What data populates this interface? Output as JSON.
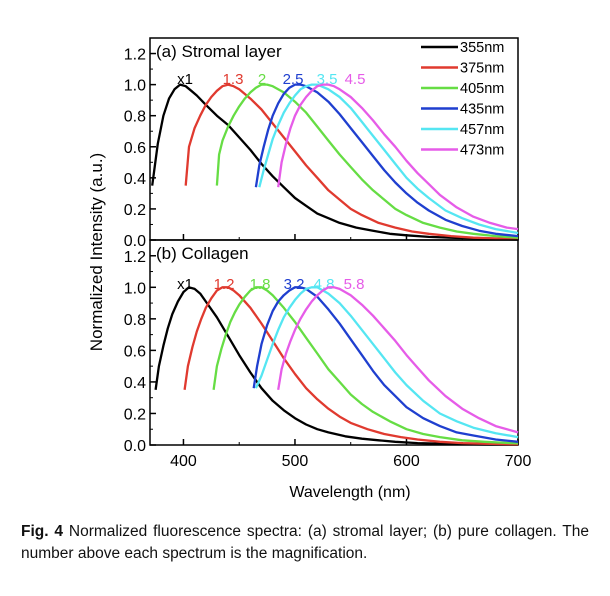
{
  "figure": {
    "ylabel": "Normalized Intensity (a.u.)",
    "xlabel": "Wavelength (nm)",
    "x_ticks": [
      "400",
      "500",
      "600",
      "700"
    ],
    "y_ticks": [
      "0.0",
      "0.2",
      "0.4",
      "0.6",
      "0.8",
      "1.0",
      "1.2"
    ],
    "legend": [
      {
        "label": "355nm",
        "color": "#000000"
      },
      {
        "label": "375nm",
        "color": "#e03a2f"
      },
      {
        "label": "405nm",
        "color": "#66dd44"
      },
      {
        "label": "435nm",
        "color": "#1f3fcf"
      },
      {
        "label": "457nm",
        "color": "#55e6f2"
      },
      {
        "label": "473nm",
        "color": "#e65ce8"
      }
    ]
  },
  "caption": {
    "label": "Fig. 4",
    "text": "Normalized fluorescence spectra: (a) stromal layer; (b) pure collagen. The number above each spectrum is the magnification."
  },
  "chart_data": [
    {
      "type": "line",
      "title": "(a) Stromal layer",
      "xlabel": "Wavelength (nm)",
      "ylabel": "Normalized Intensity (a.u.)",
      "xlim": [
        370,
        700
      ],
      "ylim": [
        0,
        1.3
      ],
      "legend_position": "top-right",
      "series": [
        {
          "name": "355nm",
          "color": "#000000",
          "magnification": "x1",
          "x": [
            372,
            377,
            382,
            387,
            392,
            397,
            402,
            407,
            412,
            420,
            430,
            440,
            450,
            460,
            470,
            480,
            490,
            500,
            510,
            520,
            530,
            540,
            555,
            570,
            585,
            600,
            620,
            640,
            660,
            680,
            700
          ],
          "y": [
            0.35,
            0.62,
            0.8,
            0.91,
            0.97,
            1.0,
            0.99,
            0.96,
            0.93,
            0.87,
            0.8,
            0.74,
            0.66,
            0.58,
            0.49,
            0.41,
            0.34,
            0.27,
            0.22,
            0.17,
            0.14,
            0.11,
            0.08,
            0.06,
            0.04,
            0.03,
            0.02,
            0.015,
            0.01,
            0.005,
            0.003
          ]
        },
        {
          "name": "375nm",
          "color": "#e03a2f",
          "magnification": "1.3",
          "x": [
            402,
            405,
            410,
            415,
            420,
            425,
            430,
            435,
            440,
            445,
            450,
            460,
            470,
            480,
            490,
            500,
            510,
            520,
            530,
            540,
            550,
            560,
            575,
            590,
            605,
            620,
            640,
            660,
            680,
            700
          ],
          "y": [
            0.35,
            0.6,
            0.72,
            0.8,
            0.87,
            0.92,
            0.96,
            0.99,
            1.0,
            0.99,
            0.97,
            0.91,
            0.84,
            0.75,
            0.66,
            0.57,
            0.48,
            0.4,
            0.32,
            0.26,
            0.2,
            0.16,
            0.11,
            0.08,
            0.055,
            0.04,
            0.025,
            0.015,
            0.01,
            0.005
          ]
        },
        {
          "name": "405nm",
          "color": "#66dd44",
          "magnification": "2",
          "x": [
            430,
            432,
            435,
            440,
            445,
            450,
            455,
            460,
            465,
            470,
            475,
            480,
            490,
            500,
            510,
            520,
            530,
            540,
            550,
            560,
            570,
            580,
            590,
            600,
            615,
            630,
            645,
            660,
            680,
            700
          ],
          "y": [
            0.35,
            0.55,
            0.64,
            0.73,
            0.8,
            0.86,
            0.91,
            0.95,
            0.98,
            1.0,
            1.0,
            0.99,
            0.95,
            0.89,
            0.82,
            0.73,
            0.64,
            0.55,
            0.47,
            0.39,
            0.32,
            0.26,
            0.2,
            0.16,
            0.11,
            0.08,
            0.055,
            0.04,
            0.025,
            0.015
          ]
        },
        {
          "name": "435nm",
          "color": "#1f3fcf",
          "magnification": "2.5",
          "x": [
            465,
            468,
            472,
            476,
            480,
            485,
            490,
            495,
            500,
            505,
            510,
            520,
            530,
            540,
            550,
            560,
            570,
            580,
            590,
            600,
            610,
            620,
            635,
            650,
            665,
            680,
            700
          ],
          "y": [
            0.34,
            0.48,
            0.6,
            0.71,
            0.8,
            0.88,
            0.94,
            0.98,
            1.0,
            1.0,
            0.99,
            0.95,
            0.89,
            0.81,
            0.72,
            0.63,
            0.54,
            0.45,
            0.37,
            0.3,
            0.24,
            0.19,
            0.13,
            0.09,
            0.06,
            0.04,
            0.025
          ]
        },
        {
          "name": "457nm",
          "color": "#55e6f2",
          "magnification": "3.5",
          "x": [
            468,
            472,
            476,
            480,
            485,
            490,
            495,
            500,
            505,
            510,
            515,
            520,
            530,
            540,
            550,
            560,
            570,
            580,
            590,
            600,
            610,
            620,
            635,
            650,
            665,
            680,
            700
          ],
          "y": [
            0.34,
            0.45,
            0.55,
            0.65,
            0.74,
            0.82,
            0.88,
            0.93,
            0.97,
            0.99,
            1.0,
            1.0,
            0.97,
            0.92,
            0.85,
            0.76,
            0.67,
            0.58,
            0.49,
            0.4,
            0.33,
            0.27,
            0.19,
            0.14,
            0.1,
            0.07,
            0.045
          ]
        },
        {
          "name": "473nm",
          "color": "#e65ce8",
          "magnification": "4.5",
          "x": [
            485,
            488,
            492,
            496,
            500,
            505,
            510,
            515,
            520,
            525,
            530,
            535,
            540,
            550,
            560,
            570,
            580,
            590,
            600,
            610,
            620,
            630,
            645,
            660,
            675,
            690,
            700
          ],
          "y": [
            0.34,
            0.5,
            0.62,
            0.72,
            0.8,
            0.87,
            0.92,
            0.96,
            0.99,
            1.0,
            1.0,
            0.99,
            0.97,
            0.92,
            0.85,
            0.77,
            0.68,
            0.6,
            0.51,
            0.43,
            0.36,
            0.29,
            0.21,
            0.15,
            0.11,
            0.08,
            0.07
          ]
        }
      ]
    },
    {
      "type": "line",
      "title": "(b) Collagen",
      "xlabel": "Wavelength (nm)",
      "ylabel": "Normalized Intensity (a.u.)",
      "xlim": [
        370,
        700
      ],
      "ylim": [
        0,
        1.3
      ],
      "series": [
        {
          "name": "355nm",
          "color": "#000000",
          "magnification": "x1",
          "x": [
            375,
            378,
            382,
            386,
            390,
            395,
            400,
            405,
            410,
            415,
            420,
            430,
            440,
            450,
            460,
            470,
            480,
            490,
            500,
            510,
            520,
            530,
            545,
            560,
            575,
            590,
            610,
            630,
            650,
            670,
            700
          ],
          "y": [
            0.35,
            0.5,
            0.63,
            0.74,
            0.83,
            0.91,
            0.97,
            1.0,
            0.99,
            0.96,
            0.91,
            0.81,
            0.69,
            0.57,
            0.46,
            0.36,
            0.28,
            0.22,
            0.17,
            0.13,
            0.1,
            0.08,
            0.055,
            0.04,
            0.03,
            0.02,
            0.012,
            0.008,
            0.005,
            0.003,
            0.002
          ]
        },
        {
          "name": "375nm",
          "color": "#e03a2f",
          "magnification": "1.2",
          "x": [
            401,
            404,
            408,
            412,
            416,
            420,
            425,
            430,
            435,
            440,
            445,
            450,
            460,
            470,
            480,
            490,
            500,
            510,
            520,
            530,
            540,
            550,
            565,
            580,
            595,
            610,
            630,
            650,
            670,
            700
          ],
          "y": [
            0.35,
            0.5,
            0.62,
            0.72,
            0.8,
            0.87,
            0.93,
            0.98,
            1.0,
            1.0,
            0.98,
            0.95,
            0.87,
            0.77,
            0.66,
            0.55,
            0.45,
            0.36,
            0.29,
            0.23,
            0.18,
            0.14,
            0.1,
            0.07,
            0.05,
            0.035,
            0.02,
            0.012,
            0.008,
            0.004
          ]
        },
        {
          "name": "405nm",
          "color": "#66dd44",
          "magnification": "1.8",
          "x": [
            427,
            430,
            434,
            438,
            442,
            446,
            450,
            455,
            460,
            465,
            470,
            475,
            480,
            490,
            500,
            510,
            520,
            530,
            540,
            550,
            560,
            570,
            585,
            600,
            615,
            630,
            650,
            670,
            700
          ],
          "y": [
            0.35,
            0.5,
            0.61,
            0.7,
            0.78,
            0.84,
            0.89,
            0.94,
            0.98,
            1.0,
            1.0,
            0.98,
            0.95,
            0.87,
            0.78,
            0.68,
            0.58,
            0.48,
            0.4,
            0.32,
            0.26,
            0.21,
            0.15,
            0.1,
            0.07,
            0.05,
            0.03,
            0.02,
            0.01
          ]
        },
        {
          "name": "435nm",
          "color": "#1f3fcf",
          "magnification": "3.2",
          "x": [
            463,
            466,
            470,
            475,
            480,
            485,
            490,
            495,
            500,
            505,
            510,
            520,
            530,
            540,
            550,
            560,
            570,
            580,
            590,
            600,
            615,
            630,
            645,
            660,
            680,
            700
          ],
          "y": [
            0.36,
            0.5,
            0.64,
            0.76,
            0.85,
            0.91,
            0.95,
            0.98,
            1.0,
            1.0,
            0.99,
            0.94,
            0.86,
            0.77,
            0.67,
            0.57,
            0.47,
            0.38,
            0.31,
            0.24,
            0.17,
            0.12,
            0.08,
            0.06,
            0.035,
            0.02
          ]
        },
        {
          "name": "457nm",
          "color": "#55e6f2",
          "magnification": "4.8",
          "x": [
            465,
            470,
            475,
            480,
            485,
            490,
            495,
            500,
            505,
            510,
            515,
            520,
            530,
            540,
            550,
            560,
            570,
            580,
            590,
            600,
            615,
            630,
            645,
            660,
            680,
            700
          ],
          "y": [
            0.36,
            0.44,
            0.54,
            0.64,
            0.73,
            0.81,
            0.87,
            0.92,
            0.96,
            0.99,
            1.0,
            1.0,
            0.96,
            0.9,
            0.82,
            0.73,
            0.64,
            0.55,
            0.46,
            0.38,
            0.28,
            0.2,
            0.15,
            0.11,
            0.075,
            0.05
          ]
        },
        {
          "name": "473nm",
          "color": "#e65ce8",
          "magnification": "5.8",
          "x": [
            485,
            488,
            492,
            496,
            500,
            505,
            510,
            515,
            520,
            525,
            530,
            535,
            540,
            550,
            560,
            570,
            580,
            590,
            600,
            610,
            620,
            635,
            650,
            665,
            680,
            700
          ],
          "y": [
            0.35,
            0.48,
            0.58,
            0.66,
            0.73,
            0.8,
            0.86,
            0.91,
            0.95,
            0.98,
            1.0,
            1.0,
            0.99,
            0.95,
            0.89,
            0.82,
            0.74,
            0.66,
            0.57,
            0.49,
            0.41,
            0.31,
            0.23,
            0.17,
            0.12,
            0.08
          ]
        }
      ]
    }
  ]
}
